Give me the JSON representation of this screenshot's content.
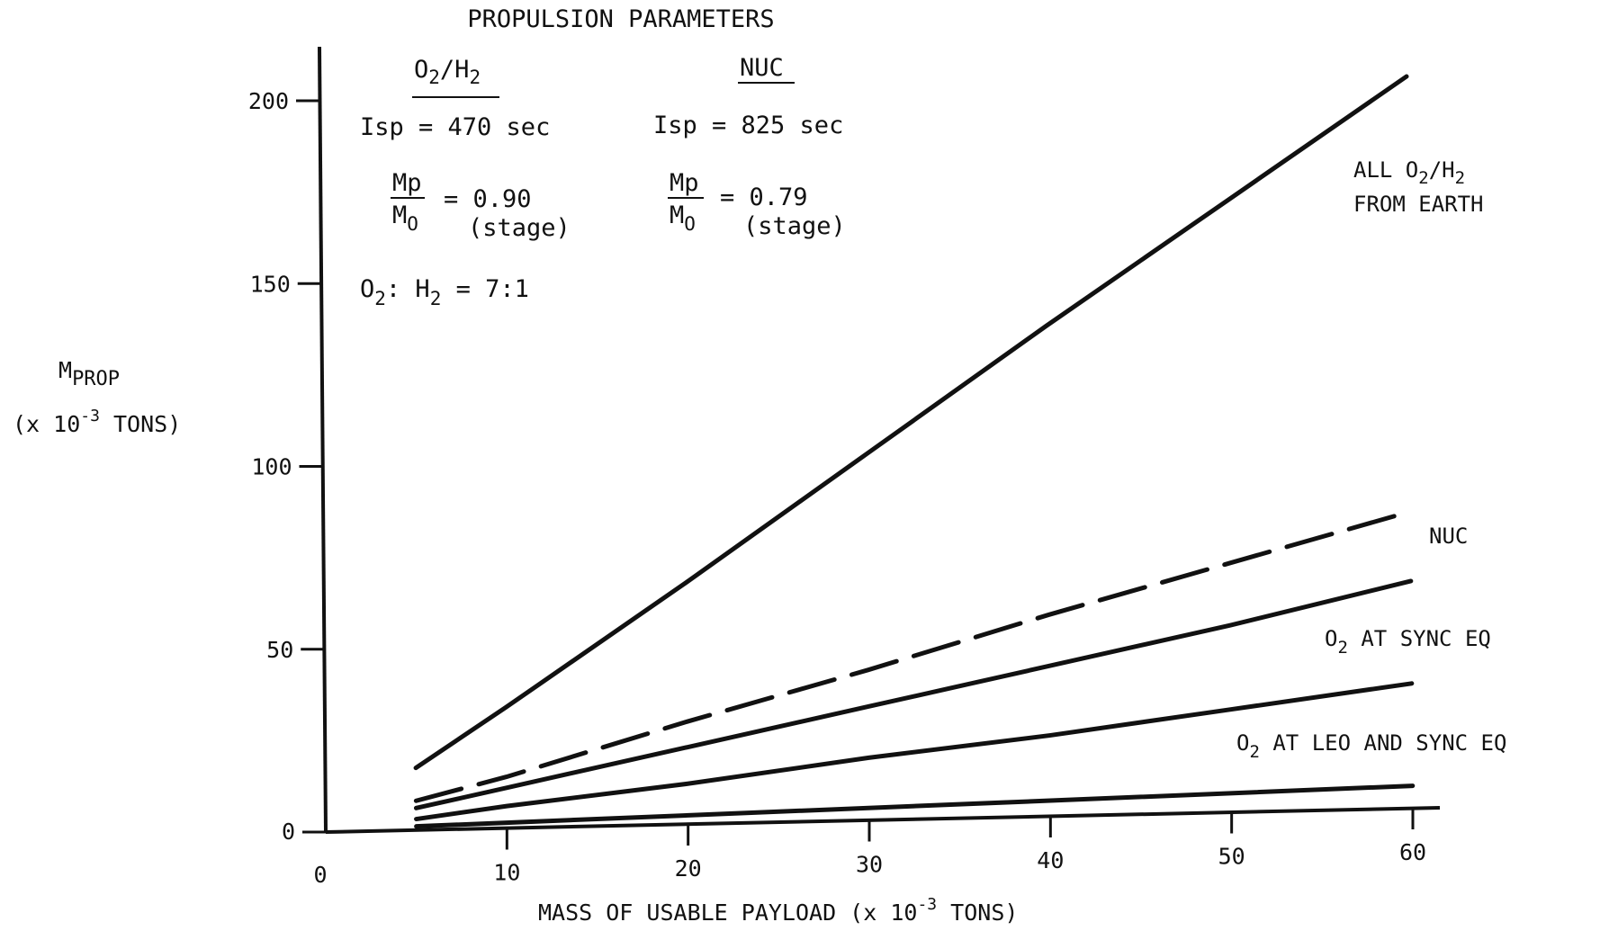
{
  "chart_data": {
    "type": "line",
    "title": "PROPULSION PARAMETERS",
    "xlabel": "MASS OF USABLE PAYLOAD (x 10",
    "xlabel_exp": "-3",
    "xlabel_tail": " TONS)",
    "ylabel_main": "M",
    "ylabel_sub": "PROP",
    "ylabel_unit": "(x 10",
    "ylabel_exp": "-3",
    "ylabel_tail": " TONS)",
    "xlim": [
      0,
      60
    ],
    "ylim": [
      0,
      200
    ],
    "x_ticks": [
      "0",
      "10",
      "20",
      "30",
      "40",
      "50",
      "60"
    ],
    "y_ticks": [
      "0",
      "50",
      "100",
      "150",
      "200"
    ],
    "grid": false,
    "series": [
      {
        "name": "ALL O2/H2 FROM EARTH",
        "label_line1": "ALL O",
        "label_sub": "2",
        "label_mid": "/H",
        "label_sub2": "2",
        "label_line2": "FROM EARTH",
        "style": "solid",
        "points": [
          [
            5,
            17
          ],
          [
            10,
            33
          ],
          [
            20,
            66
          ],
          [
            30,
            100
          ],
          [
            40,
            134
          ],
          [
            50,
            167
          ],
          [
            60,
            200
          ]
        ]
      },
      {
        "name": "NUC",
        "label_line1": "NUC",
        "style": "dashed",
        "points": [
          [
            5,
            8
          ],
          [
            10,
            14
          ],
          [
            20,
            28
          ],
          [
            30,
            41
          ],
          [
            40,
            55
          ],
          [
            50,
            68
          ],
          [
            60,
            81
          ]
        ]
      },
      {
        "name": "O2 AT SYNC EQ",
        "label_pre": "O",
        "label_sub": "2",
        "label_post": " AT SYNC EQ",
        "style": "solid",
        "points": [
          [
            5,
            6
          ],
          [
            10,
            11
          ],
          [
            20,
            21
          ],
          [
            30,
            31
          ],
          [
            40,
            41
          ],
          [
            50,
            51
          ],
          [
            60,
            62
          ]
        ]
      },
      {
        "name": "O2 AT LEO AND SYNC EQ",
        "label_pre": "O",
        "label_sub": "2",
        "label_post": " AT LEO AND SYNC EQ",
        "style": "solid",
        "points": [
          [
            5,
            3
          ],
          [
            10,
            6
          ],
          [
            20,
            11
          ],
          [
            30,
            17
          ],
          [
            40,
            22
          ],
          [
            50,
            28
          ],
          [
            60,
            34
          ]
        ]
      },
      {
        "name": "",
        "style": "solid",
        "points": [
          [
            5,
            1
          ],
          [
            60,
            6
          ]
        ]
      }
    ],
    "params": {
      "o2h2": {
        "head_pre": "O",
        "head_sub": "2",
        "head_mid": "/H",
        "head_sub2": "2",
        "isp": "Isp = 470 sec",
        "ratio_num": "Mp",
        "ratio_den": "M",
        "ratio_den_sub": "O",
        "ratio_val": "= 0.90",
        "ratio_note": "(stage)",
        "mix_pre": "O",
        "mix_sub": "2",
        "mix_mid": ":  H",
        "mix_sub2": "2",
        "mix_post": " = 7:1"
      },
      "nuc": {
        "head": "NUC",
        "isp": "Isp = 825 sec",
        "ratio_num": "Mp",
        "ratio_den": "M",
        "ratio_den_sub": "O",
        "ratio_val": "= 0.79",
        "ratio_note": "(stage)"
      }
    }
  }
}
